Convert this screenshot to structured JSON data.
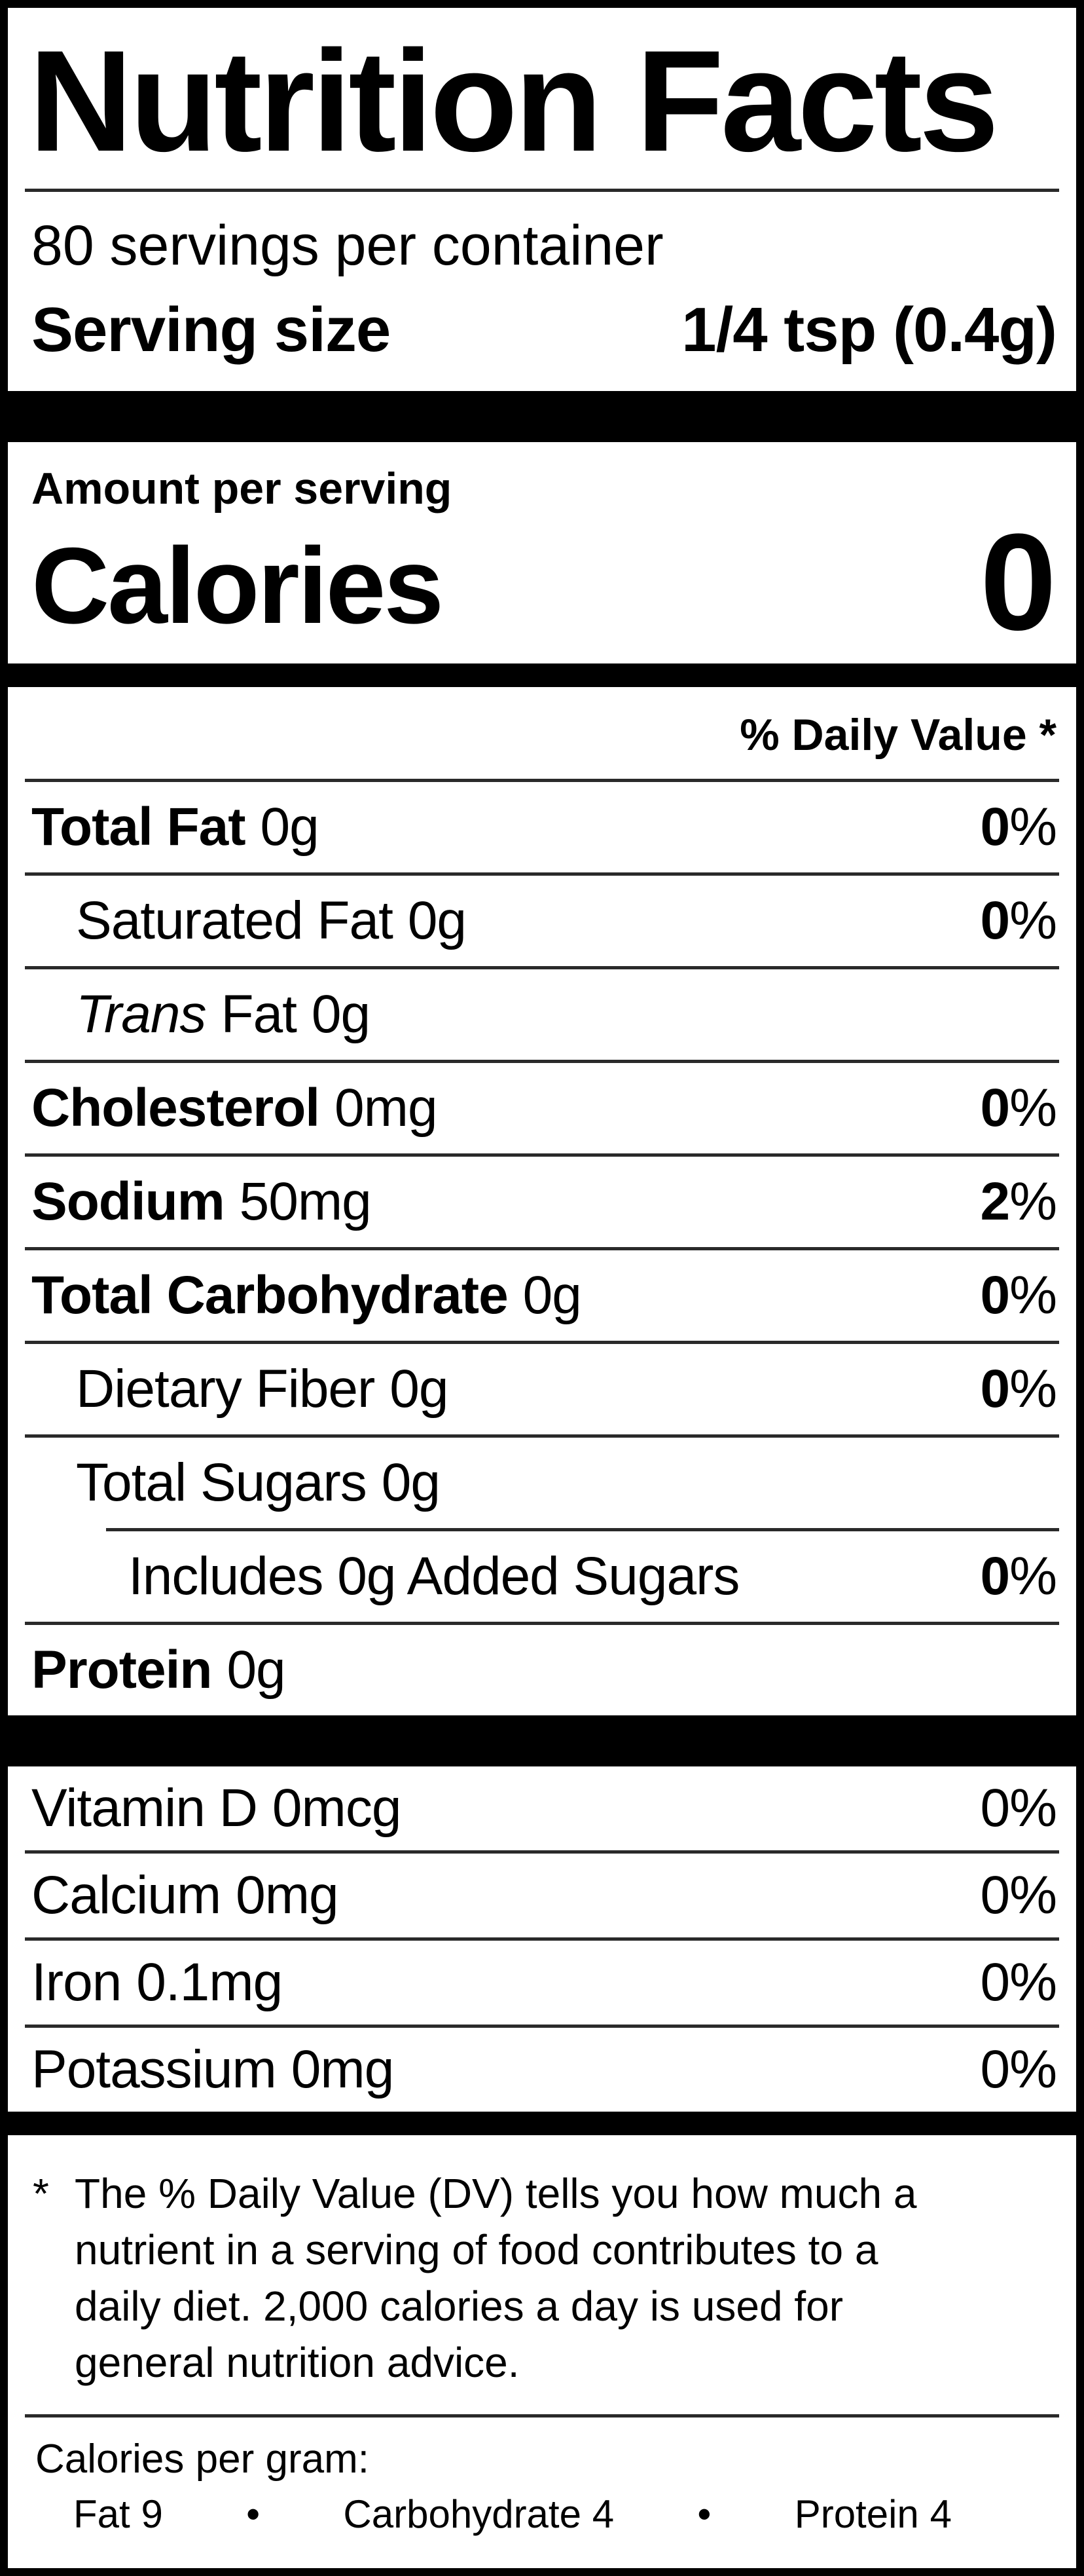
{
  "title": "Nutrition Facts",
  "servings": {
    "per_container": "80 servings per container",
    "serving_size_label": "Serving size",
    "serving_size_value": "1/4 tsp (0.4g)"
  },
  "calories": {
    "header": "Amount per serving",
    "label": "Calories",
    "value": "0"
  },
  "daily_value_header": "% Daily Value *",
  "percent_sign": "%",
  "nutrients": [
    {
      "name": "Total Fat",
      "amount": "0g",
      "dv": "0"
    },
    {
      "name": "Saturated Fat",
      "amount": "0g",
      "dv": "0"
    },
    {
      "name_italic": "Trans",
      "name": "Fat",
      "amount": "0g"
    },
    {
      "name": "Cholesterol",
      "amount": "0mg",
      "dv": "0"
    },
    {
      "name": "Sodium",
      "amount": "50mg",
      "dv": "2"
    },
    {
      "name": "Total Carbohydrate",
      "amount": "0g",
      "dv": "0"
    },
    {
      "name": "Dietary Fiber",
      "amount": "0g",
      "dv": "0"
    },
    {
      "name": "Total Sugars",
      "amount": "0g"
    },
    {
      "name": "Includes 0g Added Sugars",
      "dv": "0"
    },
    {
      "name": "Protein",
      "amount": "0g"
    }
  ],
  "vitamins": [
    {
      "name": "Vitamin D",
      "amount": "0mcg",
      "dv": "0"
    },
    {
      "name": "Calcium",
      "amount": "0mg",
      "dv": "0"
    },
    {
      "name": "Iron",
      "amount": "0.1mg",
      "dv": "0"
    },
    {
      "name": "Potassium",
      "amount": "0mg",
      "dv": "0"
    }
  ],
  "footnote": {
    "marker": "*",
    "lines": [
      "The % Daily Value (DV) tells you how much a",
      "nutrient in a serving of food contributes to a",
      "daily diet. 2,000 calories a day is used for",
      "general nutrition advice."
    ]
  },
  "calories_per_gram": {
    "label": "Calories per gram:",
    "separator": "•",
    "items": [
      {
        "name": "Fat",
        "value": "9"
      },
      {
        "name": "Carbohydrate",
        "value": "4"
      },
      {
        "name": "Protein",
        "value": "4"
      }
    ]
  },
  "colors": {
    "text": "#000000",
    "bar": "#000000",
    "divider": "#2a2a2a",
    "background": "#ffffff"
  }
}
